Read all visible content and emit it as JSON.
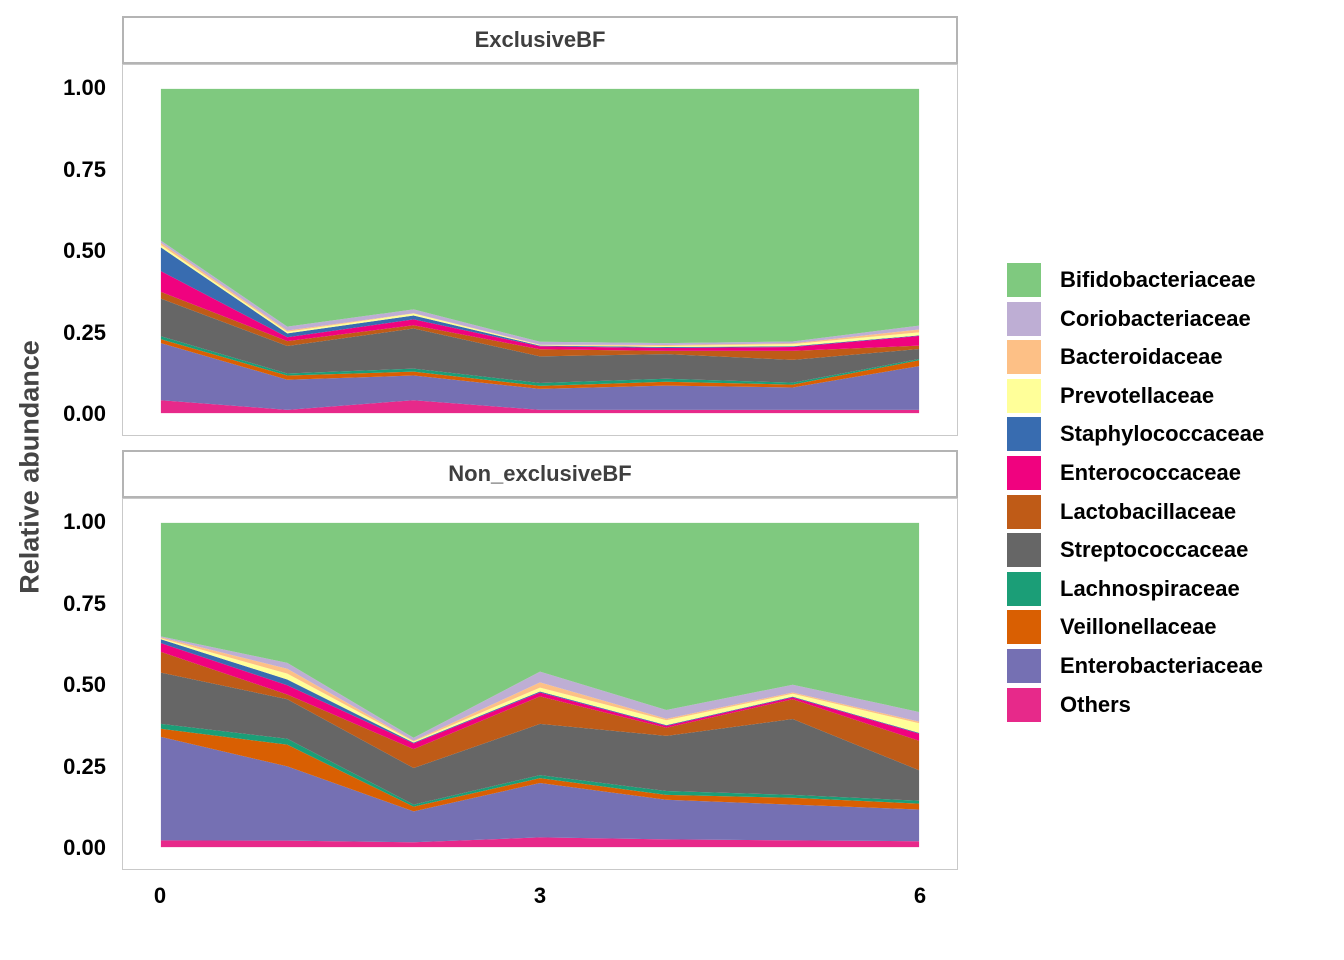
{
  "figure": {
    "y_axis_title": "Relative abundance",
    "strip_text_color": "#3f3f3f",
    "axis_text_color": "#000000",
    "y_axis_title_color": "#454545",
    "panel_border_color": "#c9c9c9",
    "strip_border_color": "#b4b4b4",
    "background_color": "#ffffff"
  },
  "chart_data": {
    "type": "area",
    "stacked": true,
    "normalized": true,
    "title": "",
    "xlabel": "",
    "ylabel": "Relative abundance",
    "x": [
      0,
      1,
      2,
      3,
      4,
      5,
      6
    ],
    "x_ticks": [
      {
        "label": "0",
        "v": 0
      },
      {
        "label": "3",
        "v": 3
      },
      {
        "label": "6",
        "v": 6
      }
    ],
    "y_ticks": [
      {
        "label": "1.00",
        "v": 1.0
      },
      {
        "label": "0.75",
        "v": 0.75
      },
      {
        "label": "0.50",
        "v": 0.5
      },
      {
        "label": "0.25",
        "v": 0.25
      },
      {
        "label": "0.00",
        "v": 0.0
      }
    ],
    "ylim": [
      0,
      1
    ],
    "grid": false,
    "legend_position": "right",
    "legend_order_note": "legend top-to-bottom equals series order; areas stack bottom-to-top in reverse of this order",
    "facets": [
      {
        "label": "ExclusiveBF",
        "series": [
          {
            "name": "Bifidobacteriaceae",
            "color": "#7FC97F",
            "values": [
              0.468,
              0.733,
              0.68,
              0.78,
              0.784,
              0.779,
              0.73
            ]
          },
          {
            "name": "Coriobacteriaceae",
            "color": "#BEAED4",
            "values": [
              0.007,
              0.012,
              0.012,
              0.009,
              0.006,
              0.006,
              0.012
            ]
          },
          {
            "name": "Bacteroidaceae",
            "color": "#FDC086",
            "values": [
              0.007,
              0.004,
              0.001,
              0.001,
              0.003,
              0.002,
              0.009
            ]
          },
          {
            "name": "Prevotellaceae",
            "color": "#FFFF99",
            "values": [
              0.007,
              0.005,
              0.006,
              0.002,
              0.003,
              0.007,
              0.009
            ]
          },
          {
            "name": "Staphylococcaceae",
            "color": "#386CB0",
            "values": [
              0.073,
              0.012,
              0.012,
              0.002,
              0.003,
              0.002,
              0.002
            ]
          },
          {
            "name": "Enterococcaceae",
            "color": "#F0027F",
            "values": [
              0.064,
              0.012,
              0.018,
              0.009,
              0.009,
              0.012,
              0.03
            ]
          },
          {
            "name": "Lactobacillaceae",
            "color": "#BF5B17",
            "values": [
              0.021,
              0.015,
              0.01,
              0.022,
              0.01,
              0.028,
              0.01
            ]
          },
          {
            "name": "Streptococcaceae",
            "color": "#666666",
            "values": [
              0.116,
              0.085,
              0.124,
              0.082,
              0.076,
              0.07,
              0.031
            ]
          },
          {
            "name": "Lachnospiraceae",
            "color": "#1B9E77",
            "values": [
              0.009,
              0.006,
              0.009,
              0.009,
              0.009,
              0.006,
              0.004
            ]
          },
          {
            "name": "Veillonellaceae",
            "color": "#D95F02",
            "values": [
              0.012,
              0.013,
              0.012,
              0.009,
              0.012,
              0.009,
              0.018
            ]
          },
          {
            "name": "Enterobacteriaceae",
            "color": "#7570B3",
            "values": [
              0.176,
              0.093,
              0.076,
              0.065,
              0.075,
              0.069,
              0.135
            ]
          },
          {
            "name": "Others",
            "color": "#E7298A",
            "values": [
              0.04,
              0.01,
              0.04,
              0.01,
              0.01,
              0.01,
              0.01
            ]
          }
        ]
      },
      {
        "label": "Non_exclusiveBF",
        "series": [
          {
            "name": "Bifidobacteriaceae",
            "color": "#7FC97F",
            "values": [
              0.35,
              0.432,
              0.663,
              0.459,
              0.577,
              0.499,
              0.583
            ]
          },
          {
            "name": "Coriobacteriaceae",
            "color": "#BEAED4",
            "values": [
              0.003,
              0.018,
              0.009,
              0.033,
              0.027,
              0.024,
              0.03
            ]
          },
          {
            "name": "Bacteroidaceae",
            "color": "#FDC086",
            "values": [
              0.003,
              0.015,
              0.002,
              0.016,
              0.005,
              0.004,
              0.005
            ]
          },
          {
            "name": "Prevotellaceae",
            "color": "#FFFF99",
            "values": [
              0.003,
              0.018,
              0.004,
              0.012,
              0.015,
              0.009,
              0.03
            ]
          },
          {
            "name": "Staphylococcaceae",
            "color": "#386CB0",
            "values": [
              0.012,
              0.018,
              0.002,
              0.003,
              0.002,
              0.002,
              0.002
            ]
          },
          {
            "name": "Enterococcaceae",
            "color": "#F0027F",
            "values": [
              0.027,
              0.028,
              0.018,
              0.012,
              0.006,
              0.006,
              0.022
            ]
          },
          {
            "name": "Lactobacillaceae",
            "color": "#BF5B17",
            "values": [
              0.064,
              0.015,
              0.058,
              0.085,
              0.025,
              0.061,
              0.091
            ]
          },
          {
            "name": "Streptococcaceae",
            "color": "#666666",
            "values": [
              0.158,
              0.122,
              0.113,
              0.158,
              0.17,
              0.234,
              0.094
            ]
          },
          {
            "name": "Lachnospiraceae",
            "color": "#1B9E77",
            "values": [
              0.015,
              0.018,
              0.006,
              0.009,
              0.012,
              0.009,
              0.009
            ]
          },
          {
            "name": "Veillonellaceae",
            "color": "#D95F02",
            "values": [
              0.025,
              0.067,
              0.015,
              0.015,
              0.015,
              0.021,
              0.018
            ]
          },
          {
            "name": "Enterobacteriaceae",
            "color": "#7570B3",
            "values": [
              0.319,
              0.229,
              0.095,
              0.168,
              0.122,
              0.11,
              0.098
            ]
          },
          {
            "name": "Others",
            "color": "#E7298A",
            "values": [
              0.021,
              0.02,
              0.015,
              0.03,
              0.024,
              0.021,
              0.018
            ]
          }
        ]
      }
    ]
  }
}
